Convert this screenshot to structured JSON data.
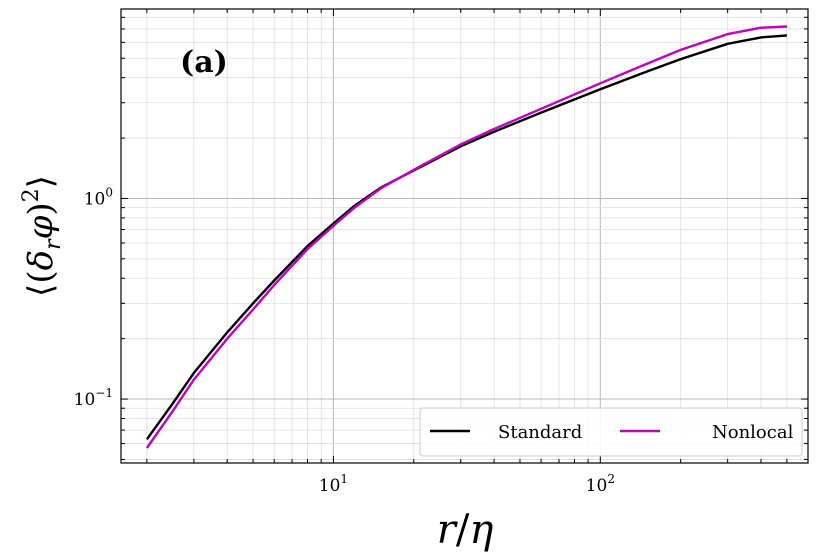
{
  "chart_data": {
    "type": "line",
    "panel_label": "(a)",
    "xlabel": "r/η",
    "ylabel": "⟨(δ_r φ)^2⟩",
    "x_scale": "log",
    "y_scale": "log",
    "xlim": [
      1.6,
      600
    ],
    "ylim": [
      0.048,
      8.8
    ],
    "grid": true,
    "legend_position": "bottom-right",
    "x_ticks": [
      {
        "value": 10,
        "base": "10",
        "exp": "1"
      },
      {
        "value": 100,
        "base": "10",
        "exp": "2"
      }
    ],
    "y_ticks": [
      {
        "value": 0.1,
        "base": "10",
        "exp": "−1"
      },
      {
        "value": 1,
        "base": "10",
        "exp": "0"
      }
    ],
    "series": [
      {
        "name": "Standard",
        "color": "#000000",
        "x": [
          2,
          2.5,
          3,
          4,
          5,
          6,
          8,
          10,
          12,
          15,
          20,
          30,
          40,
          60,
          100,
          150,
          200,
          300,
          400,
          500
        ],
        "y": [
          0.063,
          0.095,
          0.135,
          0.215,
          0.3,
          0.39,
          0.58,
          0.75,
          0.92,
          1.13,
          1.38,
          1.82,
          2.15,
          2.68,
          3.5,
          4.3,
          4.95,
          5.9,
          6.35,
          6.5
        ]
      },
      {
        "name": "Nonlocal",
        "color": "#c000c0",
        "x": [
          2,
          2.5,
          3,
          4,
          5,
          6,
          8,
          10,
          12,
          15,
          20,
          30,
          40,
          60,
          100,
          150,
          200,
          300,
          400,
          500
        ],
        "y": [
          0.057,
          0.087,
          0.125,
          0.2,
          0.28,
          0.37,
          0.56,
          0.73,
          0.9,
          1.12,
          1.39,
          1.86,
          2.22,
          2.8,
          3.75,
          4.7,
          5.5,
          6.6,
          7.1,
          7.2
        ]
      }
    ]
  }
}
